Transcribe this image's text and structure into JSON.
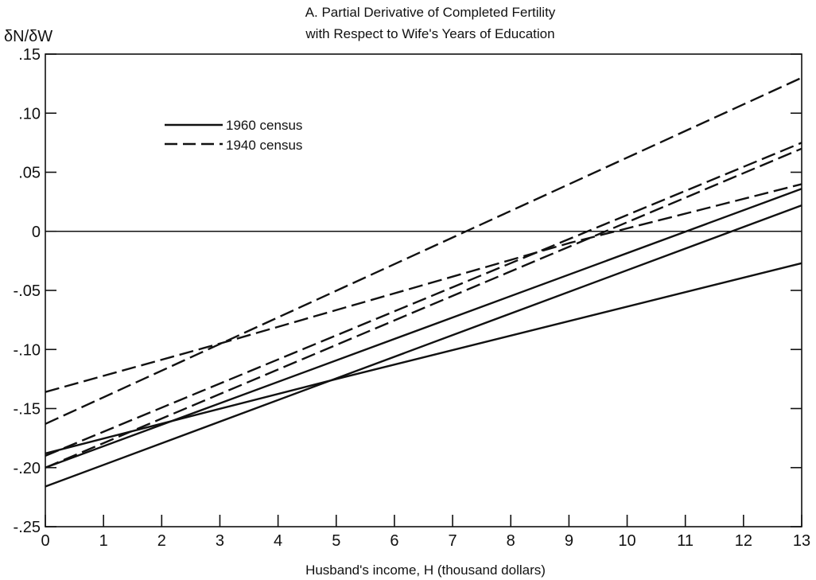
{
  "chart_data": {
    "type": "line",
    "title_line1": "A. Partial Derivative of Completed Fertility",
    "title_line2": "with Respect to Wife's Years of Education",
    "ylabel": "δN/δW",
    "xlabel": "Husband's income, H (thousand dollars)",
    "xlim": [
      0,
      13
    ],
    "ylim": [
      -0.25,
      0.15
    ],
    "x_ticks": [
      0,
      1,
      2,
      3,
      4,
      5,
      6,
      7,
      8,
      9,
      10,
      11,
      12,
      13
    ],
    "y_ticks": [
      {
        "value": 0.15,
        "label": ".15"
      },
      {
        "value": 0.1,
        "label": ".10"
      },
      {
        "value": 0.05,
        "label": ".05"
      },
      {
        "value": 0.0,
        "label": "0"
      },
      {
        "value": -0.05,
        "label": "-.05"
      },
      {
        "value": -0.1,
        "label": "-.10"
      },
      {
        "value": -0.15,
        "label": "-.15"
      },
      {
        "value": -0.2,
        "label": "-.20"
      },
      {
        "value": -0.25,
        "label": "-.25"
      }
    ],
    "zero_line": true,
    "grid": false,
    "legend": {
      "position": "top-left",
      "entries": [
        {
          "label": "1960 census",
          "style": "solid"
        },
        {
          "label": "1940 census",
          "style": "dashed"
        }
      ]
    },
    "series": [
      {
        "census": "1960",
        "style": "solid",
        "x": [
          0,
          13
        ],
        "y": [
          -0.216,
          0.022
        ]
      },
      {
        "census": "1960",
        "style": "solid",
        "x": [
          0,
          13
        ],
        "y": [
          -0.2,
          0.036
        ]
      },
      {
        "census": "1960",
        "style": "solid",
        "x": [
          0,
          5,
          13
        ],
        "y": [
          -0.188,
          -0.125,
          -0.027
        ]
      },
      {
        "census": "1940",
        "style": "dashed",
        "x": [
          0,
          13
        ],
        "y": [
          -0.163,
          0.13
        ]
      },
      {
        "census": "1940",
        "style": "dashed",
        "x": [
          0,
          13
        ],
        "y": [
          -0.19,
          0.075
        ]
      },
      {
        "census": "1940",
        "style": "dashed",
        "x": [
          0,
          13
        ],
        "y": [
          -0.2,
          0.07
        ]
      },
      {
        "census": "1940",
        "style": "dashed",
        "x": [
          0,
          3,
          9,
          13
        ],
        "y": [
          -0.136,
          -0.095,
          -0.01,
          0.04
        ]
      }
    ]
  }
}
